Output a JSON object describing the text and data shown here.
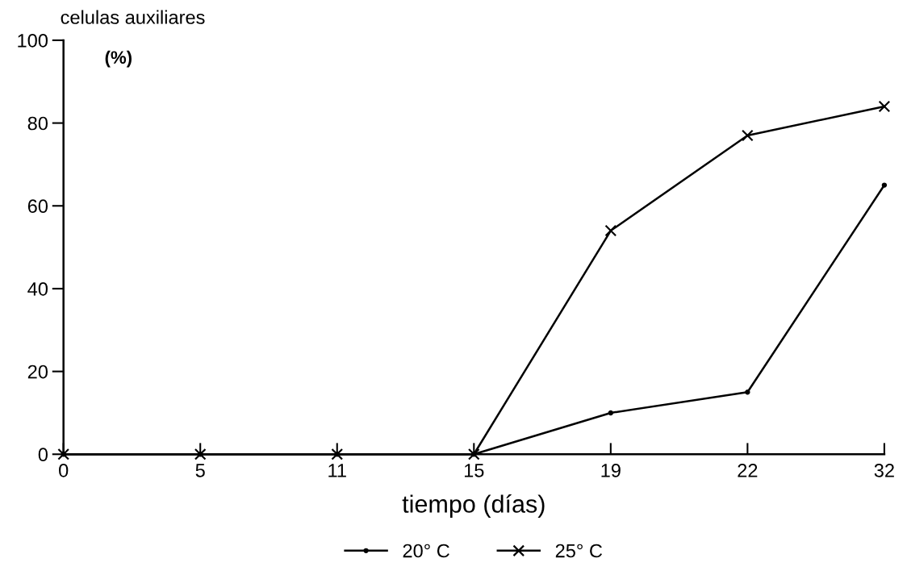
{
  "chart_data": {
    "type": "line",
    "categories": [
      "0",
      "5",
      "11",
      "15",
      "19",
      "22",
      "32"
    ],
    "xlabel": "tiempo (días)",
    "ylabel": "celulas auxiliares",
    "annotations": [
      "(%)"
    ],
    "ylim": [
      0,
      100
    ],
    "yticks": [
      0,
      20,
      40,
      60,
      80,
      100
    ],
    "series": [
      {
        "name": "20° C",
        "color": "#000000",
        "marker": "circle",
        "values": [
          0,
          0,
          0,
          0,
          10,
          15,
          65
        ]
      },
      {
        "name": "25° C",
        "color": "#000000",
        "marker": "cross",
        "values": [
          0,
          0,
          0,
          0,
          54,
          77,
          84
        ]
      }
    ],
    "grid": false,
    "legend": "bottom",
    "line_style": "solid"
  }
}
